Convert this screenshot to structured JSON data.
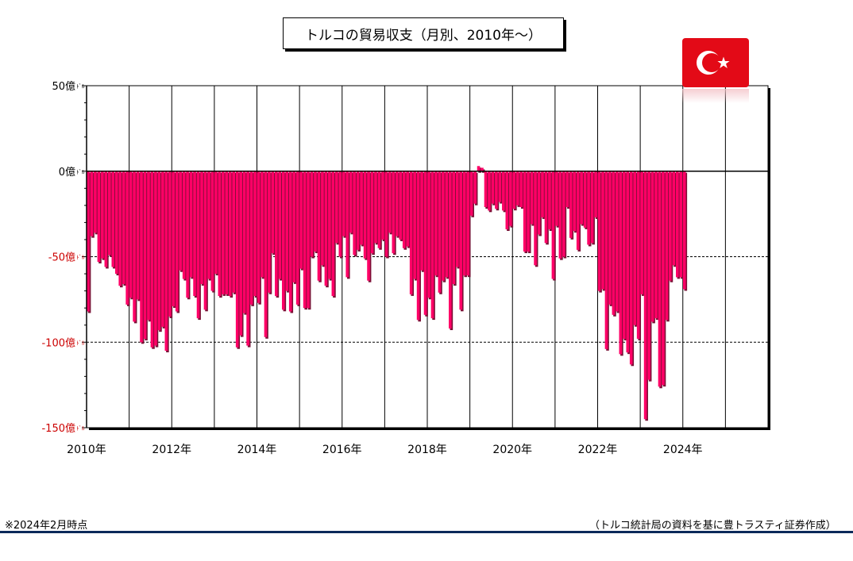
{
  "chart_title": "トルコの貿易収支（月別、2010年～）",
  "note_left": "※2024年2月時点",
  "note_right": "（トルコ統計局の資料を基に豊トラスティ証券作成）",
  "flag_icon": "turkey-flag-icon",
  "colors": {
    "bar": "#ff0066",
    "bar_shadow": "#7a0f35",
    "negative_label": "#cc0000",
    "rule": "#0b2a5a",
    "flag_red": "#e30a17"
  },
  "chart_data": {
    "type": "bar",
    "title": "トルコの貿易収支（月別、2010年～）",
    "unit": "億ドル",
    "ylim": [
      -150,
      50
    ],
    "yticks": [
      {
        "value": 50,
        "label": "50億",
        "unit": "ﾄﾞﾙ"
      },
      {
        "value": 0,
        "label": "0億",
        "unit": "ﾄﾞﾙ"
      },
      {
        "value": -50,
        "label": "-50億",
        "unit": "ﾄﾞﾙ"
      },
      {
        "value": -100,
        "label": "-100億",
        "unit": "ﾄﾞﾙ"
      },
      {
        "value": -150,
        "label": "-150億",
        "unit": "ﾄﾞﾙ"
      }
    ],
    "xlim": [
      "2010-01",
      "2025-12"
    ],
    "xtick_labels": [
      "2010年",
      "2012年",
      "2014年",
      "2016年",
      "2018年",
      "2020年",
      "2022年",
      "2024年"
    ],
    "grid": {
      "vertical": "yearly",
      "horizontal_dashed": [
        -50,
        -100
      ]
    },
    "start_month": "2010-01",
    "values": [
      -82,
      -38,
      -36,
      -53,
      -51,
      -56,
      -49,
      -56,
      -60,
      -67,
      -66,
      -78,
      -74,
      -88,
      -75,
      -100,
      -98,
      -87,
      -103,
      -102,
      -93,
      -91,
      -105,
      -85,
      -79,
      -82,
      -58,
      -63,
      -74,
      -62,
      -73,
      -86,
      -66,
      -81,
      -63,
      -70,
      -60,
      -73,
      -72,
      -72,
      -73,
      -71,
      -103,
      -96,
      -83,
      -102,
      -78,
      -73,
      -77,
      -62,
      -97,
      -71,
      -48,
      -73,
      -63,
      -81,
      -70,
      -82,
      -65,
      -78,
      -57,
      -80,
      -80,
      -50,
      -47,
      -64,
      -55,
      -67,
      -63,
      -73,
      -42,
      -50,
      -38,
      -62,
      -36,
      -49,
      -46,
      -43,
      -51,
      -64,
      -48,
      -42,
      -45,
      -40,
      -50,
      -36,
      -48,
      -38,
      -40,
      -45,
      -44,
      -72,
      -63,
      -87,
      -58,
      -84,
      -74,
      -86,
      -61,
      -71,
      -64,
      -62,
      -92,
      -66,
      -56,
      -81,
      -61,
      -61,
      -26,
      -19,
      3,
      2,
      -21,
      -23,
      -19,
      -22,
      -18,
      -23,
      -34,
      -32,
      -22,
      -20,
      -21,
      -47,
      -47,
      -31,
      -55,
      -37,
      -27,
      -42,
      -34,
      -63,
      -32,
      -51,
      -50,
      -21,
      -39,
      -35,
      -46,
      -31,
      -33,
      -43,
      -42,
      -27,
      -70,
      -69,
      -104,
      -78,
      -84,
      -82,
      -107,
      -98,
      -106,
      -113,
      -90,
      -98,
      -72,
      -145,
      -122,
      -88,
      -86,
      -126,
      -125,
      -87,
      -64,
      -55,
      -62,
      -62,
      -69
    ]
  }
}
